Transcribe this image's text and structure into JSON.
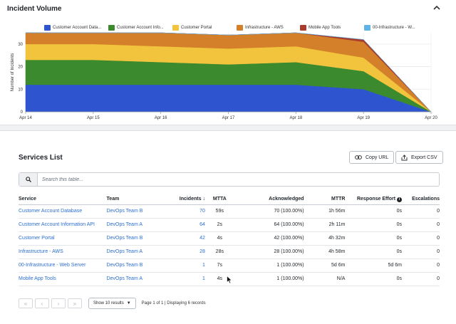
{
  "incident_volume": {
    "title": "Incident Volume",
    "legend": [
      {
        "label": "Customer Account Data...",
        "color": "#2e54d0"
      },
      {
        "label": "Customer Account Info...",
        "color": "#3c8a2e"
      },
      {
        "label": "Customer Portal",
        "color": "#f2c43d"
      },
      {
        "label": "Infrastructure - AWS",
        "color": "#d4802a"
      },
      {
        "label": "Mobile App Tools",
        "color": "#a83c2e"
      },
      {
        "label": "00-Infrastructure - W...",
        "color": "#5fb3e6"
      }
    ]
  },
  "chart_data": {
    "type": "area",
    "stacked": true,
    "x": [
      "Apr 14",
      "Apr 15",
      "Apr 16",
      "Apr 17",
      "Apr 18",
      "Apr 19",
      "Apr 20"
    ],
    "ylabel": "Number of Incidents",
    "ylim": [
      0,
      35
    ],
    "yticks": [
      0,
      10,
      20,
      30
    ],
    "grid": true,
    "series": [
      {
        "name": "Customer Account Data...",
        "color": "#2e54d0",
        "values": [
          12,
          12,
          12,
          12,
          12,
          10,
          0
        ]
      },
      {
        "name": "Customer Account Info...",
        "color": "#3c8a2e",
        "values": [
          11,
          11,
          10,
          9,
          10,
          8,
          0
        ]
      },
      {
        "name": "Customer Portal",
        "color": "#f2c43d",
        "values": [
          7,
          7,
          7,
          7,
          7,
          6,
          0
        ]
      },
      {
        "name": "Infrastructure - AWS",
        "color": "#d4802a",
        "values": [
          5,
          5,
          6,
          6,
          6,
          7,
          0
        ]
      },
      {
        "name": "Mobile App Tools",
        "color": "#a83c2e",
        "values": [
          0,
          0,
          0,
          0,
          0,
          1,
          0
        ]
      },
      {
        "name": "00-Infrastructure - W...",
        "color": "#5fb3e6",
        "values": [
          0,
          0,
          0,
          0,
          0,
          0,
          0
        ]
      }
    ]
  },
  "services": {
    "title": "Services List",
    "copy_url": "Copy URL",
    "export_csv": "Export CSV",
    "search_placeholder": "Search this table...",
    "columns": [
      "Service",
      "Team",
      "Incidents",
      "MTTA",
      "Acknowledged",
      "MTTR",
      "Response Effort",
      "Escalations"
    ],
    "rows": [
      {
        "service": "Customer Account Database",
        "team": "DevOps Team B",
        "incidents": "70",
        "mtta": "59s",
        "ack": "70 (100.00%)",
        "mttr": "1h 56m",
        "effort": "0s",
        "esc": "0"
      },
      {
        "service": "Customer Account Information API",
        "team": "DevOps Team A",
        "incidents": "64",
        "mtta": "2s",
        "ack": "64 (100.00%)",
        "mttr": "2h 11m",
        "effort": "0s",
        "esc": "0"
      },
      {
        "service": "Customer Portal",
        "team": "DevOps Team B",
        "incidents": "42",
        "mtta": "4s",
        "ack": "42 (100.00%)",
        "mttr": "4h 32m",
        "effort": "0s",
        "esc": "0"
      },
      {
        "service": "Infrastructure - AWS",
        "team": "DevOps Team A",
        "incidents": "28",
        "mtta": "28s",
        "ack": "28 (100.00%)",
        "mttr": "4h 58m",
        "effort": "0s",
        "esc": "0"
      },
      {
        "service": "00-Infrastructure - Web Server",
        "team": "DevOps Team B",
        "incidents": "1",
        "mtta": "7s",
        "ack": "1 (100.00%)",
        "mttr": "5d 6m",
        "effort": "5d 6m",
        "esc": "0"
      },
      {
        "service": "Mobile App Tools",
        "team": "DevOps Team A",
        "incidents": "1",
        "mtta": "4s",
        "ack": "1 (100.00%)",
        "mttr": "N/A",
        "effort": "0s",
        "esc": "0"
      }
    ],
    "pager": {
      "show_label": "Show 10 results",
      "info": "Page 1 of 1 | Displaying 6 records"
    }
  }
}
